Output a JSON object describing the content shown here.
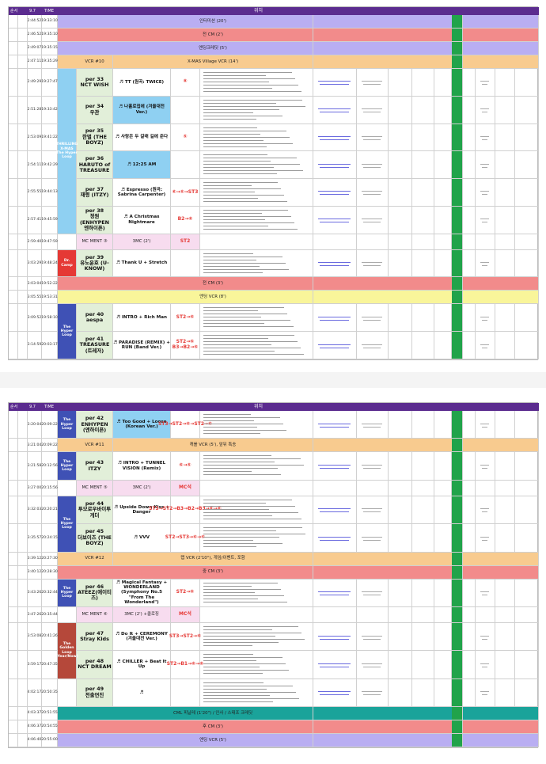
{
  "panels": [
    {
      "header": {
        "order": "순서",
        "date": "9.7",
        "time": "TIME",
        "position": "위치"
      },
      "rows": [
        {
          "kind": "band",
          "time": "2:44:52",
          "clock": "19:33:10",
          "label": "인터미션 (20')",
          "color": "#b9aef2"
        },
        {
          "kind": "band",
          "time": "2:46:52",
          "clock": "19:35:10",
          "label": "전 CM (2')",
          "color": "#f28b8b"
        },
        {
          "kind": "band",
          "time": "2:49:07",
          "clock": "19:35:15",
          "label": "엔딩크레딧 (5')",
          "color": "#b9aef2"
        },
        {
          "kind": "band",
          "time": "2:47:11",
          "clock": "19:35:29",
          "tag": "VCR #10",
          "label": "X-MAS Village VCR (14')",
          "color": "#f8cb8f"
        },
        {
          "kind": "perf",
          "time": "2:49:29",
          "clock": "19:27:47",
          "no": "per 33",
          "artist": "NCT WISH",
          "song": "♬ TT (원곡: TWICE)",
          "cam": "⑧",
          "block": {
            "label": "THRILLING X-MAS The Hyper Loop",
            "rows": 6,
            "color": "#8fd0f2"
          }
        },
        {
          "kind": "perf",
          "time": "2:51:28",
          "clock": "19:33:42",
          "no": "per 34",
          "artist": "우관",
          "song": "♬ 나홀로집에 (겨울대전 Ver.)",
          "song_color": "#8fd0f2"
        },
        {
          "kind": "perf",
          "time": "2:53:09",
          "clock": "19:41:22",
          "no": "per 35",
          "artist": "한별 (THE BOYZ)",
          "song": "♬ 사랑은 두 갈래 길에 준다",
          "cam": "⑤"
        },
        {
          "kind": "perf",
          "time": "2:54:11",
          "clock": "19:42:29",
          "no": "per 36",
          "artist": "HARUTO of TREASURE",
          "song": "♬ 12:25 AM",
          "song_color": "#8fd0f2"
        },
        {
          "kind": "perf",
          "time": "2:55:55",
          "clock": "19:44:13",
          "no": "per 37",
          "artist": "재령 (ITZY)",
          "song": "♬ Espresso (원곡: Sabrina Carpenter)",
          "cam": "⑥→⑤→ST3"
        },
        {
          "kind": "perf",
          "time": "2:57:41",
          "clock": "19:45:59",
          "no": "per 38",
          "artist": "정원 (ENHYPEN 엔하이픈)",
          "song": "♬ A Christmas Nightmare",
          "cam": "B2→⑥"
        },
        {
          "kind": "mc",
          "time": "2:59:40",
          "clock": "19:47:59",
          "tag": "MC MENT ③",
          "label": "3MC (2')",
          "cam": "ST2",
          "color": "#f7dcef"
        },
        {
          "kind": "perf",
          "time": "3:03:29",
          "clock": "19:48:24",
          "no": "per 39",
          "artist": "유노윤호 (U-KNOW)",
          "song": "♬ Thank U + Stretch",
          "block": {
            "label": "Dr. Camp",
            "rows": 1,
            "color": "#e53935"
          }
        },
        {
          "kind": "band",
          "time": "3:03:04",
          "clock": "19:52:22",
          "label": "전 CM (3')",
          "color": "#f28b8b"
        },
        {
          "kind": "band",
          "time": "3:05:55",
          "clock": "19:53:31",
          "label": "엔딩 VCR (8')",
          "color": "#f9f59a"
        },
        {
          "kind": "perf",
          "time": "3:09:52",
          "clock": "19:58:10",
          "no": "per 40",
          "artist": "aespa",
          "song": "♬ INTRO + Rich Man",
          "cam": "ST2→⑥",
          "block": {
            "label": "The Hyper Loop",
            "rows": 2,
            "color": "#3f51b5"
          }
        },
        {
          "kind": "perf",
          "time": "3:14:59",
          "clock": "20:03:17",
          "no": "per 41",
          "artist": "TREASURE (트레저)",
          "song": "♬ PARADISE (REMIX) + RUN (Band Ver.)",
          "cam": "ST2→⑥ B3→B2→⑥"
        }
      ]
    },
    {
      "header": {
        "order": "순서",
        "date": "9.7",
        "time": "TIME",
        "position": "위치"
      },
      "rows": [
        {
          "kind": "perf",
          "time": "3:20:04",
          "clock": "20:09:22",
          "no": "per 42",
          "artist": "ENHYPEN (엔하이픈)",
          "song": "♬ Too Good + Loose (Korean Ver.)",
          "cam": "ST3→ST2→⑥→ST2→⑥",
          "song_color": "#8fd0f2",
          "block": {
            "label": "The Hyper Loop",
            "rows": 1,
            "color": "#3f51b5"
          }
        },
        {
          "kind": "band",
          "time": "3:21:04",
          "clock": "20:09:22",
          "tag": "VCR #11",
          "label": "캐롤 VCR (5'), 앞뒤 특송",
          "color": "#f8cb8f"
        },
        {
          "kind": "perf",
          "time": "3:21:58",
          "clock": "20:12:56",
          "no": "per 43",
          "artist": "ITZY",
          "song": "♬ INTRO + TUNNEL VISION (Remix)",
          "cam": "⑥→⑤",
          "block": {
            "label": "The Hyper Loop",
            "rows": 1,
            "color": "#3f51b5"
          }
        },
        {
          "kind": "mc",
          "time": "3:27:00",
          "clock": "20:15:56",
          "tag": "MC MENT ⑤",
          "label": "3MC (2')",
          "cam": "MC석",
          "color": "#f7dcef"
        },
        {
          "kind": "perf",
          "time": "3:32:03",
          "clock": "20:20:21",
          "no": "per 44",
          "artist": "투모로우바이투게더",
          "song": "♬ Upside Down Kiss + Danger",
          "cam": "ST3→ST2→B3→B2→B3→⑥→⑥",
          "block": {
            "label": "The Hyper Loop",
            "rows": 2,
            "color": "#3f51b5"
          }
        },
        {
          "kind": "perf",
          "time": "3:35:57",
          "clock": "20:24:15",
          "no": "per 45",
          "artist": "더보이즈 (THE BOYZ)",
          "song": "♬ VVV",
          "cam": "ST2→ST3→⑥→⑥"
        },
        {
          "kind": "band",
          "time": "3:39:12",
          "clock": "20:27:30",
          "tag": "VCR #12",
          "label": "랩 VCR (2'10\"), 게임/이벤트, 포함",
          "color": "#f8cb8f"
        },
        {
          "kind": "band",
          "time": "3:40:12",
          "clock": "20:28:30",
          "label": "중 CM (3')",
          "color": "#f28b8b"
        },
        {
          "kind": "perf",
          "time": "3:43:26",
          "clock": "20:32:44",
          "no": "per 46",
          "artist": "ATEEZ(에이티즈)",
          "song": "♬ Magical Fantasy + WONDERLAND (Symphony No.5 \"From The Wonderland\")",
          "cam": "ST2→⑥",
          "block": {
            "label": "The Hyper Loop",
            "rows": 1,
            "color": "#3f51b5"
          }
        },
        {
          "kind": "mc",
          "time": "3:47:26",
          "clock": "20:35:44",
          "tag": "MC MENT ⑥",
          "label": "3MC (2') +클로징",
          "cam": "MC석",
          "color": "#f7dcef"
        },
        {
          "kind": "perf",
          "time": "3:53:08",
          "clock": "20:41:26",
          "no": "per 47",
          "artist": "Stray Kids",
          "song": "♬ Do It + CEREMONY (겨울대전 Ver.)",
          "cam": "ST3→ST2→⑥",
          "block": {
            "label": "The Golden Loop (Year/Now)",
            "rows": 2,
            "color": "#b5483a"
          }
        },
        {
          "kind": "perf",
          "time": "3:59:17",
          "clock": "20:47:35",
          "no": "per 48",
          "artist": "NCT DREAM",
          "song": "♬ CHILLER + Beat It Up",
          "cam": "ST2→B1→⑥→⑥"
        },
        {
          "kind": "perf",
          "time": "4:02:17",
          "clock": "20:50:35",
          "no": "per 49",
          "artist": "전출연진",
          "song": "♬"
        },
        {
          "kind": "band",
          "time": "4:03:37",
          "clock": "20:51:55",
          "label": "CML 피날레 (1'20\") / 인사 / 스태프 크레딧",
          "color": "#1aa39a"
        },
        {
          "kind": "band",
          "time": "4:06:37",
          "clock": "20:54:55",
          "label": "후 CM (3')",
          "color": "#f28b8b"
        },
        {
          "kind": "band",
          "time": "4:06:40",
          "clock": "20:55:00",
          "label": "엔딩 VCR (5')",
          "color": "#b9aef2"
        }
      ]
    }
  ]
}
